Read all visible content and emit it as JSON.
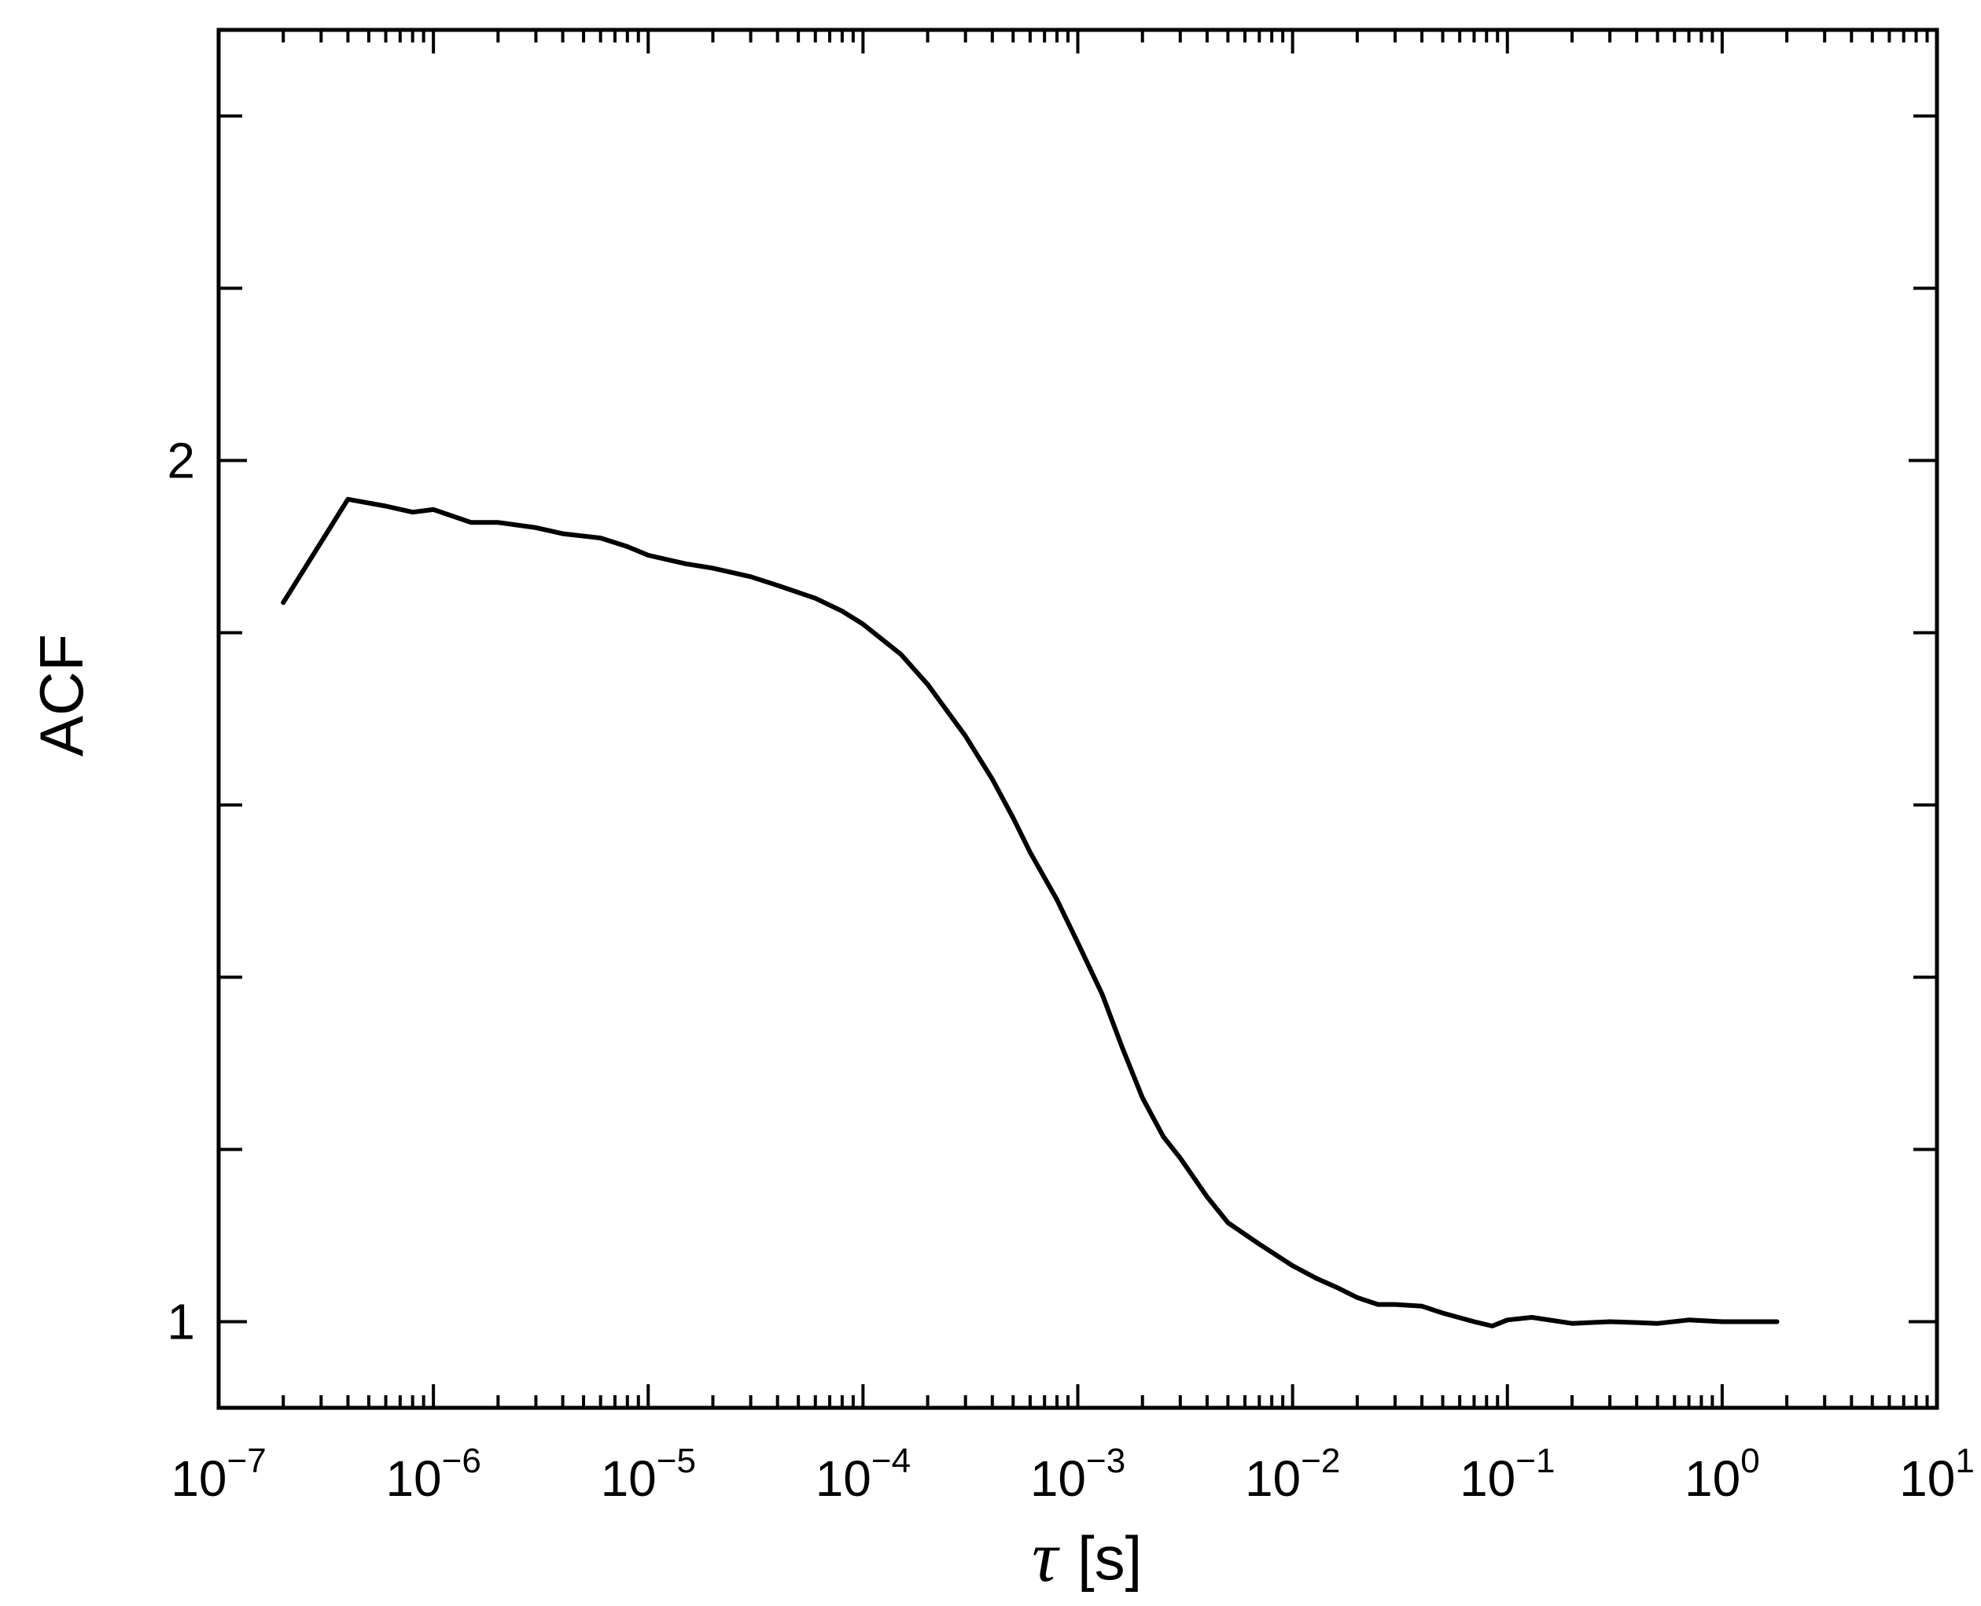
{
  "chart_data": {
    "type": "line",
    "title": "",
    "xlabel": "[s]",
    "xlabel_symbol": "τ",
    "ylabel": "ACF",
    "xscale": "log",
    "xlim": [
      1e-07,
      10
    ],
    "ylim": [
      0.9,
      2.5
    ],
    "grid": false,
    "legend": "none",
    "x_ticks": [
      {
        "base": "10",
        "exp": "−7",
        "value": 1e-07
      },
      {
        "base": "10",
        "exp": "−6",
        "value": 1e-06
      },
      {
        "base": "10",
        "exp": "−5",
        "value": 1e-05
      },
      {
        "base": "10",
        "exp": "−4",
        "value": 0.0001
      },
      {
        "base": "10",
        "exp": "−3",
        "value": 0.001
      },
      {
        "base": "10",
        "exp": "−2",
        "value": 0.01
      },
      {
        "base": "10",
        "exp": "−1",
        "value": 0.1
      },
      {
        "base": "10",
        "exp": "0",
        "value": 1
      },
      {
        "base": "10",
        "exp": "1",
        "value": 10
      }
    ],
    "y_ticks": [
      {
        "label": "1",
        "value": 1
      },
      {
        "label": "2",
        "value": 2
      }
    ],
    "y_minor_ticks": [
      1.2,
      1.4,
      1.6,
      1.8,
      2.2,
      2.4
    ],
    "line_color": "#000000",
    "series": [
      {
        "x": [
          2e-07,
          4e-07,
          6e-07,
          8e-07,
          1e-06,
          1.5e-06,
          2e-06,
          3e-06,
          4e-06,
          6e-06,
          8e-06,
          1e-05,
          1.5e-05,
          2e-05,
          3e-05,
          4e-05,
          6e-05,
          8e-05,
          0.0001,
          0.00015,
          0.0002,
          0.0003,
          0.0004,
          0.0005,
          0.0006,
          0.0008,
          0.001,
          0.0013,
          0.0016,
          0.002,
          0.0025,
          0.003,
          0.004,
          0.005,
          0.007,
          0.01,
          0.013,
          0.016,
          0.02,
          0.025,
          0.03,
          0.04,
          0.05,
          0.07,
          0.085,
          0.1,
          0.13,
          0.2,
          0.3,
          0.4,
          0.5,
          0.7,
          1,
          1.5,
          1.8
        ],
        "y": [
          1.835,
          1.955,
          1.947,
          1.94,
          1.943,
          1.928,
          1.928,
          1.922,
          1.915,
          1.91,
          1.9,
          1.89,
          1.88,
          1.875,
          1.865,
          1.855,
          1.84,
          1.825,
          1.81,
          1.775,
          1.74,
          1.68,
          1.63,
          1.585,
          1.545,
          1.49,
          1.44,
          1.38,
          1.32,
          1.26,
          1.215,
          1.19,
          1.145,
          1.115,
          1.09,
          1.065,
          1.05,
          1.04,
          1.028,
          1.02,
          1.02,
          1.018,
          1.01,
          1.0,
          0.995,
          1.002,
          1.005,
          0.998,
          1.0,
          0.999,
          0.998,
          1.002,
          1.0,
          1.0,
          1.0
        ]
      }
    ]
  }
}
